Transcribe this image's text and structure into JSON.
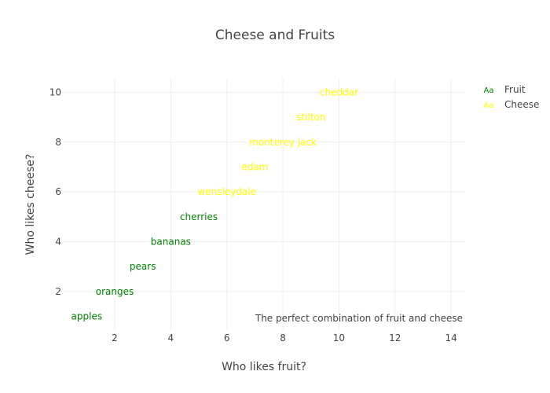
{
  "chart_data": {
    "type": "scatter",
    "mode": "text",
    "title": "Cheese and Fruits",
    "xlabel": "Who likes fruit?",
    "ylabel": "Who likes cheese?",
    "xlim": [
      0.15,
      14.5
    ],
    "ylim": [
      0.45,
      10.55
    ],
    "xticks": [
      2,
      4,
      6,
      8,
      10,
      12,
      14
    ],
    "yticks": [
      2,
      4,
      6,
      8,
      10
    ],
    "grid": true,
    "legend": "right",
    "series": [
      {
        "name": "Fruit",
        "color": "#008000",
        "points": [
          {
            "x": 1,
            "y": 1,
            "text": "apples"
          },
          {
            "x": 2,
            "y": 2,
            "text": "oranges"
          },
          {
            "x": 3,
            "y": 3,
            "text": "pears"
          },
          {
            "x": 4,
            "y": 4,
            "text": "bananas"
          },
          {
            "x": 5,
            "y": 5,
            "text": "cherries"
          }
        ]
      },
      {
        "name": "Cheese",
        "color": "#ffff00",
        "points": [
          {
            "x": 6,
            "y": 6,
            "text": "wensleydale"
          },
          {
            "x": 7,
            "y": 7,
            "text": "edam"
          },
          {
            "x": 8,
            "y": 8,
            "text": "monterey jack"
          },
          {
            "x": 9,
            "y": 9,
            "text": "stilton"
          },
          {
            "x": 10,
            "y": 10,
            "text": "cheddar"
          }
        ]
      }
    ],
    "legend_symbol": "Aa",
    "annotation": {
      "text": "The perfect combination of fruit and cheese",
      "position": "bottom-right"
    }
  }
}
